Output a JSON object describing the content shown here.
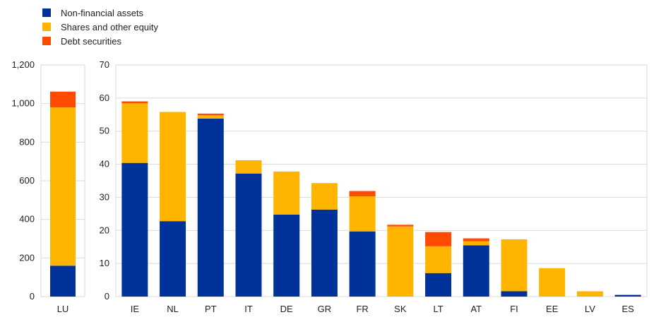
{
  "chart_data": [
    {
      "type": "bar",
      "stacked": true,
      "categories": [
        "LU"
      ],
      "series": [
        {
          "name": "Non-financial assets",
          "values": [
            160
          ]
        },
        {
          "name": "Shares and other equity",
          "values": [
            820
          ]
        },
        {
          "name": "Debt securities",
          "values": [
            82
          ]
        }
      ],
      "ylim": [
        0,
        1200
      ],
      "yticks": [
        "0",
        "200",
        "400",
        "600",
        "800",
        "1,000",
        "1,200"
      ],
      "grid": true
    },
    {
      "type": "bar",
      "stacked": true,
      "categories": [
        "IE",
        "NL",
        "PT",
        "IT",
        "DE",
        "GR",
        "FR",
        "SK",
        "LT",
        "AT",
        "FI",
        "EE",
        "LV",
        "ES"
      ],
      "series": [
        {
          "name": "Non-financial assets",
          "values": [
            40.4,
            22.8,
            53.8,
            37.2,
            24.8,
            26.3,
            19.7,
            0,
            7.1,
            15.5,
            1.6,
            0,
            0,
            0.5
          ]
        },
        {
          "name": "Shares and other equity",
          "values": [
            18.0,
            33.0,
            1.0,
            4.0,
            13.0,
            8.0,
            10.6,
            21.2,
            8.1,
            1.2,
            15.7,
            8.6,
            1.6,
            0.1
          ]
        },
        {
          "name": "Debt securities",
          "values": [
            0.6,
            0,
            0.5,
            0,
            0,
            0,
            1.6,
            0.5,
            4.3,
            0.9,
            0,
            0,
            0,
            0
          ]
        }
      ],
      "ylim": [
        0,
        70
      ],
      "yticks": [
        "0",
        "10",
        "20",
        "30",
        "40",
        "50",
        "60",
        "70"
      ],
      "grid": true
    }
  ],
  "legend": [
    {
      "name": "Non-financial assets",
      "color": "#003299"
    },
    {
      "name": "Shares and other equity",
      "color": "#FFB400"
    },
    {
      "name": "Debt securities",
      "color": "#FF4B00"
    }
  ]
}
